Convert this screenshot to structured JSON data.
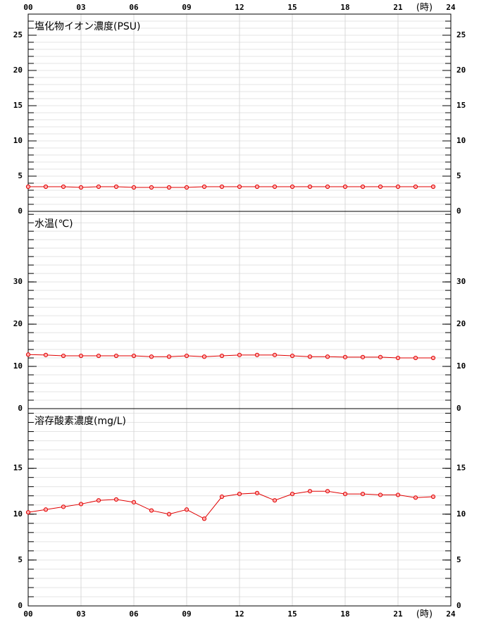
{
  "chart_data": [
    {
      "type": "line",
      "title": "塩化物イオン濃度(PSU)",
      "x_label": "(時)",
      "xlim": [
        0,
        24
      ],
      "xticks": [
        {
          "value": 0,
          "label": "00"
        },
        {
          "value": 3,
          "label": "03"
        },
        {
          "value": 6,
          "label": "06"
        },
        {
          "value": 9,
          "label": "09"
        },
        12,
        15,
        18,
        21,
        24
      ],
      "x": [
        0,
        1,
        2,
        3,
        4,
        5,
        6,
        7,
        8,
        9,
        10,
        11,
        12,
        13,
        14,
        15,
        16,
        17,
        18,
        19,
        20,
        21,
        22,
        23
      ],
      "series": [
        {
          "color": "#e00000",
          "values": [
            3.5,
            3.5,
            3.5,
            3.4,
            3.5,
            3.5,
            3.4,
            3.4,
            3.4,
            3.4,
            3.5,
            3.5,
            3.5,
            3.5,
            3.5,
            3.5,
            3.5,
            3.5,
            3.5,
            3.5,
            3.5,
            3.5,
            3.5,
            3.5
          ]
        }
      ],
      "ylim": [
        0,
        28
      ],
      "yticks": [
        0,
        5,
        10,
        15,
        20,
        25
      ]
    },
    {
      "type": "line",
      "title": "水温(℃)",
      "x": [
        0,
        1,
        2,
        3,
        4,
        5,
        6,
        7,
        8,
        9,
        10,
        11,
        12,
        13,
        14,
        15,
        16,
        17,
        18,
        19,
        20,
        21,
        22,
        23
      ],
      "series": [
        {
          "color": "#e00000",
          "values": [
            12.8,
            12.7,
            12.5,
            12.5,
            12.5,
            12.5,
            12.5,
            12.3,
            12.3,
            12.5,
            12.3,
            12.5,
            12.7,
            12.7,
            12.7,
            12.5,
            12.3,
            12.3,
            12.2,
            12.2,
            12.2,
            12.0,
            12.0,
            12.0
          ]
        }
      ],
      "ylim": [
        0,
        46.7
      ],
      "yticks": [
        0,
        10,
        20,
        30
      ]
    },
    {
      "type": "line",
      "title": "溶存酸素濃度(mg/L)",
      "x_label": "(時)",
      "xlim": [
        0,
        24
      ],
      "xticks": [
        {
          "value": 0,
          "label": "00"
        },
        {
          "value": 3,
          "label": "03"
        },
        {
          "value": 6,
          "label": "06"
        },
        {
          "value": 9,
          "label": "09"
        },
        12,
        15,
        18,
        21,
        24
      ],
      "x": [
        0,
        1,
        2,
        3,
        4,
        5,
        6,
        7,
        8,
        9,
        10,
        11,
        12,
        13,
        14,
        15,
        16,
        17,
        18,
        19,
        20,
        21,
        22,
        23
      ],
      "series": [
        {
          "color": "#e00000",
          "values": [
            10.2,
            10.5,
            10.8,
            11.1,
            11.5,
            11.6,
            11.3,
            10.4,
            10.0,
            10.5,
            9.5,
            11.9,
            12.2,
            12.3,
            11.5,
            12.2,
            12.5,
            12.5,
            12.2,
            12.2,
            12.1,
            12.1,
            11.8,
            11.9
          ]
        }
      ],
      "ylim": [
        0,
        21.5
      ],
      "yticks": [
        0,
        5,
        10,
        15
      ]
    }
  ]
}
